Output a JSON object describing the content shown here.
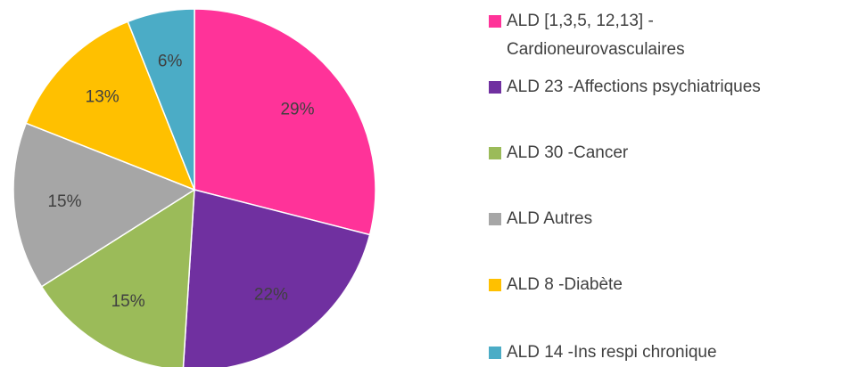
{
  "chart_data": {
    "type": "pie",
    "categories": [
      "ALD [1,3,5, 12,13] - Cardioneurovasculaires",
      "ALD 23 -Affections psychiatriques",
      "ALD 30 -Cancer",
      "ALD Autres",
      "ALD 8 -Diabète",
      "ALD 14 -Ins respi chronique"
    ],
    "values": [
      29,
      22,
      15,
      15,
      13,
      6
    ],
    "value_labels": [
      "29%",
      "22%",
      "15%",
      "15%",
      "13%",
      "6%"
    ],
    "colors": [
      "#FF3399",
      "#7030A0",
      "#9BBB59",
      "#A6A6A6",
      "#FFC000",
      "#4BACC6"
    ],
    "legend": "right"
  }
}
